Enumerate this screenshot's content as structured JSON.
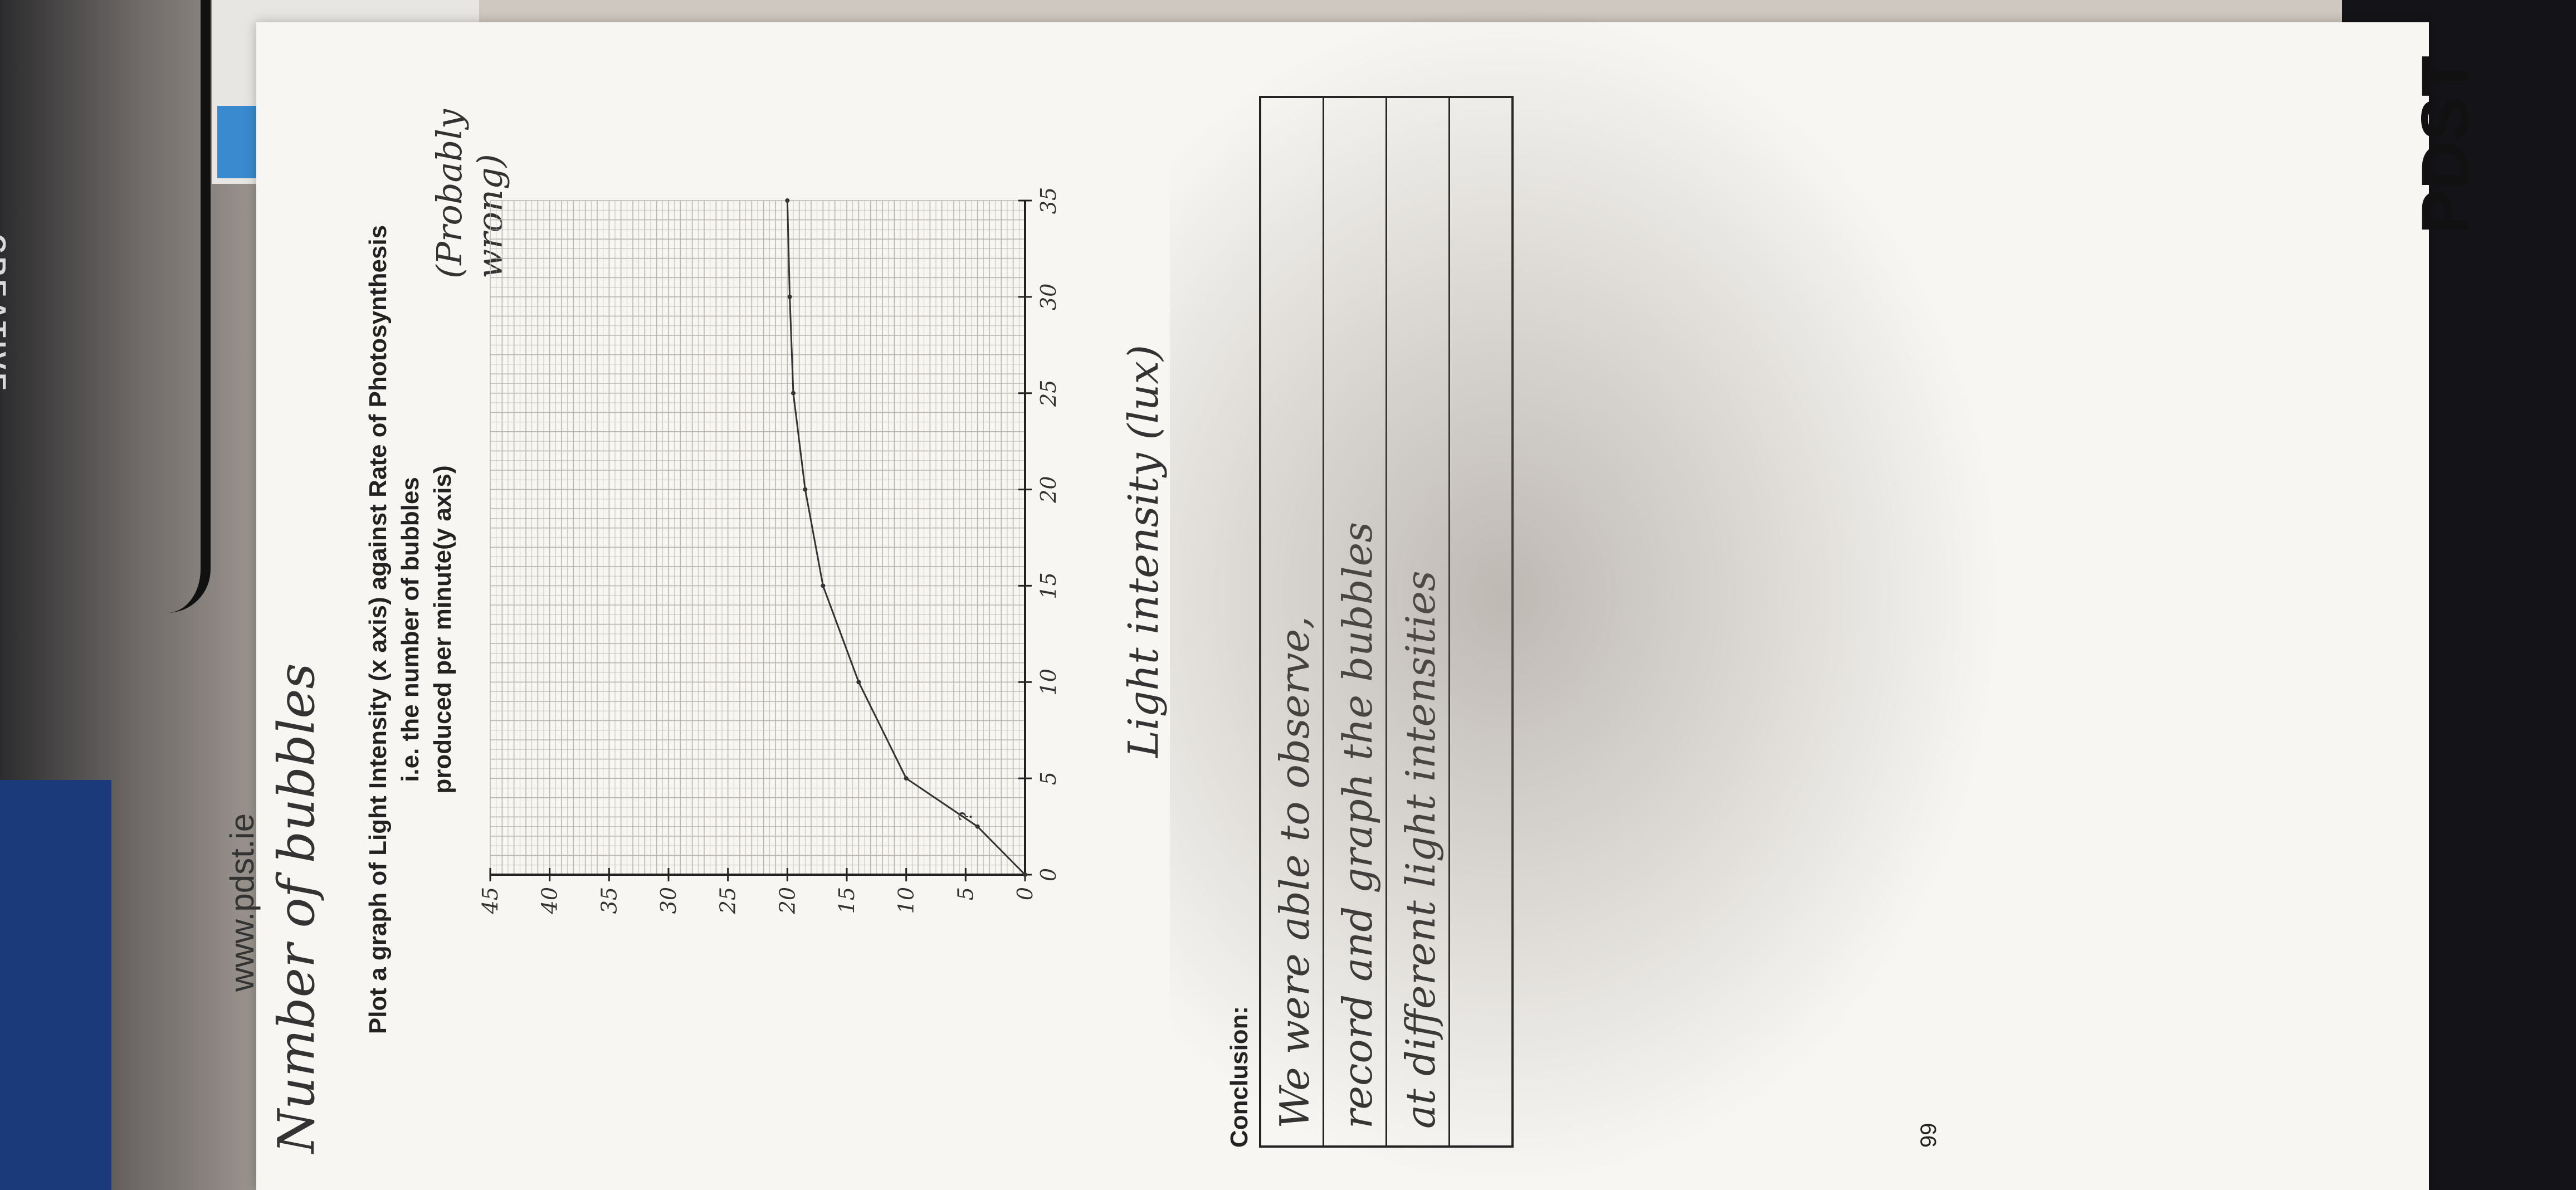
{
  "background": {
    "laptop_brand_text": "CREATIVE"
  },
  "worksheet": {
    "title_line1": "Plot a graph of Light Intensity (x axis) against Rate of Photosynthesis i.e. the number of bubbles",
    "title_line2": "produced per minute(y axis)",
    "side_note": "(Probably wrong)",
    "x_axis_handwritten": "Light intensity (lux)",
    "y_axis_handwritten": "Number of bubbles",
    "conclusion_label": "Conclusion:",
    "conclusion_lines": [
      "We were able to observe,",
      "record and graph the bubbles",
      "at different light intensities",
      ""
    ],
    "page_number": "99",
    "footer_url": "www.pdst.ie",
    "brand": "PDST"
  },
  "chart_data": {
    "type": "line",
    "title": "",
    "xlabel": "Light intensity (lux)",
    "ylabel": "Number of bubbles",
    "xticks": [
      "0",
      "5",
      "10",
      "15",
      "20",
      "25",
      "30",
      "35"
    ],
    "yticks": [
      "0",
      "5",
      "10",
      "15",
      "20",
      "25",
      "30",
      "35",
      "40",
      "45"
    ],
    "xlim": [
      0,
      35
    ],
    "ylim": [
      0,
      45
    ],
    "grid": true,
    "series": [
      {
        "x": [
          0,
          2.5,
          5,
          10,
          15,
          20,
          25,
          30,
          35
        ],
        "y": [
          0,
          4,
          10,
          14,
          17,
          18.5,
          19.5,
          19.8,
          20
        ]
      }
    ],
    "annotations": [
      "?"
    ]
  },
  "colors": {
    "paper": "#f7f6f3",
    "grid": "#b9b6b0",
    "ink": "#333333"
  }
}
